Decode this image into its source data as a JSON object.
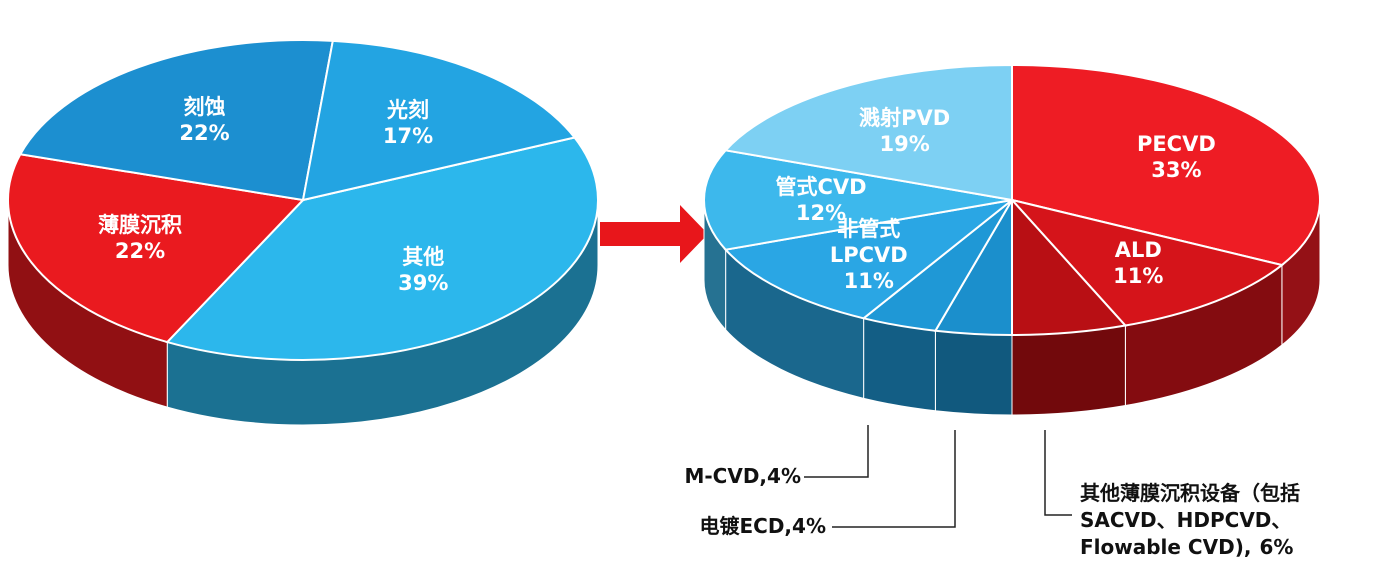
{
  "chart_data": [
    {
      "type": "pie",
      "categories": [
        "其他",
        "薄膜沉积",
        "刻蚀",
        "光刻"
      ],
      "values": [
        39,
        22,
        22,
        17
      ],
      "value_labels": [
        "39%",
        "22%",
        "22%",
        "17%"
      ],
      "colors": [
        "#2cb7ec",
        "#ea1a1f",
        "#1c8fd0",
        "#23a4e2"
      ]
    },
    {
      "type": "pie",
      "categories": [
        "PECVD",
        "ALD",
        "其他薄膜沉积设备（包括SACVD、HDPCVD、Flowable CVD),",
        "电镀ECD,",
        "M-CVD,",
        "非管式LPCVD",
        "管式CVD",
        "溅射PVD"
      ],
      "values": [
        33,
        11,
        6,
        4,
        4,
        11,
        12,
        19
      ],
      "value_labels": [
        "33%",
        "11%",
        "6%",
        "4%",
        "4%",
        "11%",
        "12%",
        "19%"
      ],
      "colors": [
        "#ee1c24",
        "#d5141a",
        "#b80f14",
        "#1b8fcc",
        "#1f98d6",
        "#2aa6e4",
        "#3db8ec",
        "#7dd0f3"
      ]
    }
  ]
}
